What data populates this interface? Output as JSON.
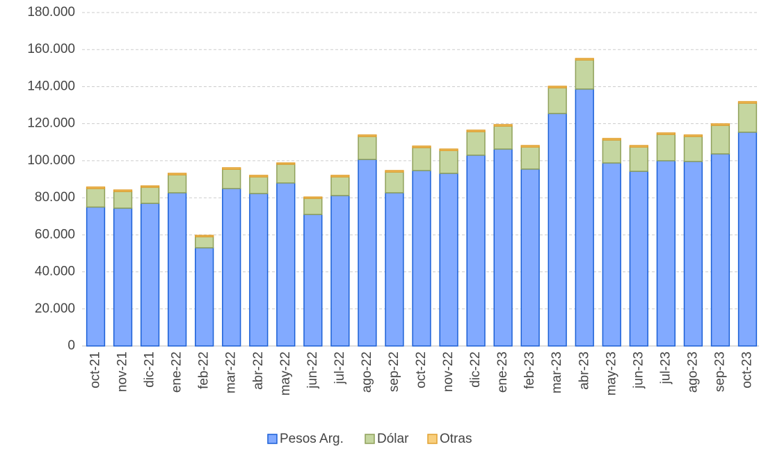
{
  "chart_data": {
    "type": "stacked_bar",
    "categories": [
      "oct-21",
      "nov-21",
      "dic-21",
      "ene-22",
      "feb-22",
      "mar-22",
      "abr-22",
      "may-22",
      "jun-22",
      "jul-22",
      "ago-22",
      "sep-22",
      "oct-22",
      "nov-22",
      "dic-22",
      "ene-23",
      "feb-23",
      "mar-23",
      "abr-23",
      "may-23",
      "jun-23",
      "jul-23",
      "ago-23",
      "sep-23",
      "oct-23"
    ],
    "series": [
      {
        "name": "Pesos Arg.",
        "color": "#82aaff",
        "values": [
          75000,
          74400,
          77000,
          82700,
          53000,
          85000,
          82300,
          88000,
          71000,
          81200,
          100700,
          82700,
          94700,
          93200,
          103000,
          106300,
          95500,
          125500,
          138700,
          98800,
          94300,
          100000,
          99600,
          103700,
          115400
        ]
      },
      {
        "name": "Dólar",
        "color": "#c5d6a0",
        "values": [
          10000,
          9000,
          8700,
          9700,
          6000,
          10400,
          9000,
          10100,
          8700,
          10100,
          12400,
          11200,
          12400,
          12300,
          12700,
          12400,
          11900,
          13900,
          15700,
          12400,
          13100,
          14200,
          13500,
          15400,
          15700
        ]
      },
      {
        "name": "Otras",
        "color": "#f8cf7e",
        "values": [
          800,
          800,
          700,
          800,
          700,
          800,
          800,
          700,
          700,
          800,
          800,
          800,
          800,
          800,
          800,
          800,
          800,
          800,
          800,
          800,
          800,
          800,
          800,
          800,
          800
        ]
      }
    ],
    "ylim": [
      0,
      180000
    ],
    "yticks": [
      0,
      {
        "value": 20000,
        "label": "20.000"
      },
      {
        "value": 40000,
        "label": "40.000"
      },
      {
        "value": 60000,
        "label": "60.000"
      },
      {
        "value": 80000,
        "label": "80.000"
      },
      {
        "value": 100000,
        "label": "100.000"
      },
      {
        "value": 120000,
        "label": "120.000"
      },
      {
        "value": 140000,
        "label": "140.000"
      },
      {
        "value": 160000,
        "label": "160.000"
      },
      {
        "value": 180000,
        "label": "180.000"
      }
    ],
    "grid": true
  }
}
